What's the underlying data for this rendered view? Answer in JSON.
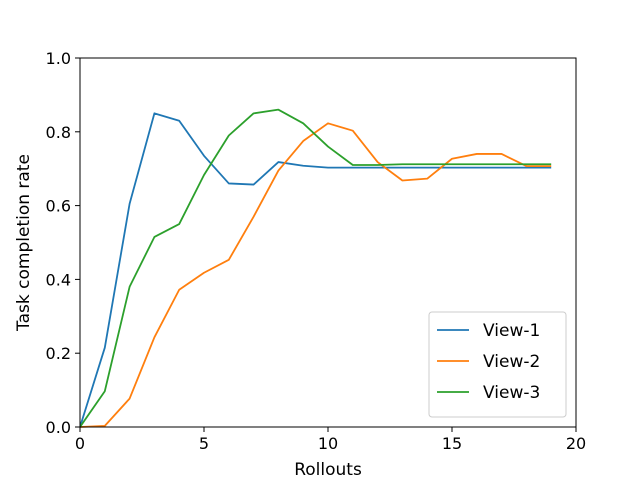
{
  "chart_data": {
    "type": "line",
    "title": "",
    "xlabel": "Rollouts",
    "ylabel": "Task completion rate",
    "xlim": [
      0,
      20
    ],
    "ylim": [
      0.0,
      1.0
    ],
    "x_ticks": [
      "0",
      "5",
      "10",
      "15",
      "20"
    ],
    "y_ticks": [
      "0.0",
      "0.2",
      "0.4",
      "0.6",
      "0.8",
      "1.0"
    ],
    "grid": false,
    "legend_position": "lower-right",
    "x": [
      0,
      1,
      2,
      3,
      4,
      5,
      6,
      7,
      8,
      9,
      10,
      11,
      12,
      13,
      14,
      15,
      16,
      17,
      18,
      19
    ],
    "series": [
      {
        "name": "View-1",
        "color": "#1f77b4",
        "values": [
          0.0,
          0.215,
          0.605,
          0.85,
          0.83,
          0.735,
          0.66,
          0.657,
          0.718,
          0.708,
          0.703,
          0.703,
          0.703,
          0.703,
          0.703,
          0.703,
          0.703,
          0.703,
          0.703,
          0.703
        ]
      },
      {
        "name": "View-2",
        "color": "#ff7f0e",
        "values": [
          0.0,
          0.003,
          0.077,
          0.243,
          0.372,
          0.418,
          0.453,
          0.57,
          0.695,
          0.775,
          0.823,
          0.803,
          0.718,
          0.668,
          0.673,
          0.727,
          0.74,
          0.74,
          0.707,
          0.707
        ]
      },
      {
        "name": "View-3",
        "color": "#2ca02c",
        "values": [
          0.0,
          0.097,
          0.38,
          0.515,
          0.55,
          0.683,
          0.79,
          0.85,
          0.86,
          0.823,
          0.76,
          0.71,
          0.71,
          0.712,
          0.712,
          0.712,
          0.712,
          0.712,
          0.712,
          0.712
        ]
      }
    ]
  }
}
